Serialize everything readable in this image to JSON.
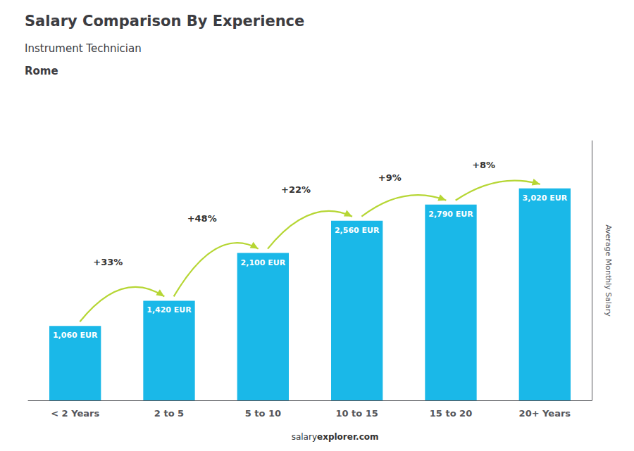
{
  "chart_data": {
    "type": "bar",
    "title": "Salary Comparison By Experience",
    "subtitle": [
      "Instrument Technician",
      "Rome"
    ],
    "ylabel": "Average Monthly Salary",
    "categories": [
      "< 2 Years",
      "2 to 5",
      "5 to 10",
      "10 to 15",
      "15 to 20",
      "20+ Years"
    ],
    "values": [
      1060,
      1420,
      2100,
      2560,
      2790,
      3020
    ],
    "value_labels": [
      "1,060 EUR",
      "1,420 EUR",
      "2,100 EUR",
      "2,560 EUR",
      "2,790 EUR",
      "3,020 EUR"
    ],
    "data_labels": true,
    "color": "#1ab8e8",
    "ylim": [
      0,
      3700
    ],
    "grid": false,
    "tick_labels": "x",
    "annotations": [
      {
        "text": "+33%",
        "from": "< 2 Years",
        "to": "2 to 5"
      },
      {
        "text": "+48%",
        "from": "2 to 5",
        "to": "5 to 10"
      },
      {
        "text": "+22%",
        "from": "5 to 10",
        "to": "10 to 15"
      },
      {
        "text": "+9%",
        "from": "10 to 15",
        "to": "15 to 20"
      },
      {
        "text": "+8%",
        "from": "15 to 20",
        "to": "20+ Years"
      }
    ],
    "footer": [
      "salary",
      "explorer.com"
    ]
  }
}
